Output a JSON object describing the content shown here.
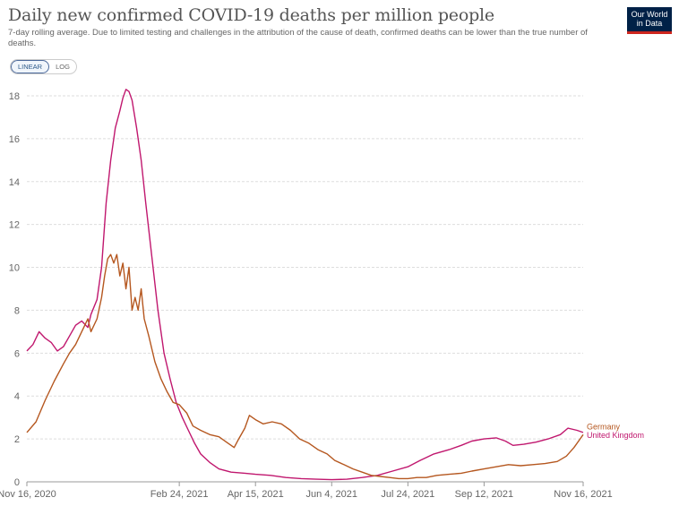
{
  "header": {
    "title": "Daily new confirmed COVID-19 deaths per million people",
    "subtitle": "7-day rolling average. Due to limited testing and challenges in the attribution of the cause of death, confirmed deaths can be lower than the true number of deaths.",
    "logo_line1": "Our World",
    "logo_line2": "in Data"
  },
  "controls": {
    "linear_label": "LINEAR",
    "log_label": "LOG",
    "active": "linear"
  },
  "colors": {
    "germany": "#b5571f",
    "uk": "#c0176e",
    "grid": "#dddddd",
    "logo_bg": "#002147",
    "logo_accent": "#ce261e"
  },
  "chart_data": {
    "type": "line",
    "title": "Daily new confirmed COVID-19 deaths per million people",
    "x_tick_labels": [
      "Nov 16, 2020",
      "Feb 24, 2021",
      "Apr 15, 2021",
      "Jun 4, 2021",
      "Jul 24, 2021",
      "Sep 12, 2021",
      "Nov 16, 2021"
    ],
    "x_tick_dates": [
      "2020-11-16",
      "2021-02-24",
      "2021-04-15",
      "2021-06-04",
      "2021-07-24",
      "2021-09-12",
      "2021-11-16"
    ],
    "x_range": [
      "2020-11-16",
      "2021-11-16"
    ],
    "y_ticks": [
      0,
      2,
      4,
      6,
      8,
      10,
      12,
      14,
      16,
      18
    ],
    "ylim": [
      0,
      18.5
    ],
    "grid": "horizontal dashed",
    "legend": "line-end labels on the right",
    "series": [
      {
        "name": "Germany",
        "color": "#b5571f",
        "points": [
          [
            "2020-11-16",
            2.3
          ],
          [
            "2020-11-22",
            2.8
          ],
          [
            "2020-11-28",
            3.8
          ],
          [
            "2020-12-04",
            4.7
          ],
          [
            "2020-12-10",
            5.5
          ],
          [
            "2020-12-14",
            6.0
          ],
          [
            "2020-12-18",
            6.4
          ],
          [
            "2020-12-22",
            7.0
          ],
          [
            "2020-12-26",
            7.6
          ],
          [
            "2020-12-28",
            7.0
          ],
          [
            "2021-01-01",
            7.6
          ],
          [
            "2021-01-04",
            8.6
          ],
          [
            "2021-01-06",
            9.6
          ],
          [
            "2021-01-08",
            10.4
          ],
          [
            "2021-01-10",
            10.6
          ],
          [
            "2021-01-12",
            10.2
          ],
          [
            "2021-01-14",
            10.6
          ],
          [
            "2021-01-16",
            9.6
          ],
          [
            "2021-01-18",
            10.2
          ],
          [
            "2021-01-20",
            9.0
          ],
          [
            "2021-01-22",
            10.0
          ],
          [
            "2021-01-24",
            8.0
          ],
          [
            "2021-01-26",
            8.6
          ],
          [
            "2021-01-28",
            8.0
          ],
          [
            "2021-01-30",
            9.0
          ],
          [
            "2021-02-01",
            7.6
          ],
          [
            "2021-02-04",
            6.8
          ],
          [
            "2021-02-08",
            5.6
          ],
          [
            "2021-02-12",
            4.8
          ],
          [
            "2021-02-16",
            4.2
          ],
          [
            "2021-02-20",
            3.7
          ],
          [
            "2021-02-24",
            3.6
          ],
          [
            "2021-03-01",
            3.2
          ],
          [
            "2021-03-05",
            2.6
          ],
          [
            "2021-03-10",
            2.4
          ],
          [
            "2021-03-16",
            2.2
          ],
          [
            "2021-03-22",
            2.1
          ],
          [
            "2021-03-28",
            1.8
          ],
          [
            "2021-04-01",
            1.6
          ],
          [
            "2021-04-04",
            2.0
          ],
          [
            "2021-04-08",
            2.5
          ],
          [
            "2021-04-11",
            3.1
          ],
          [
            "2021-04-15",
            2.9
          ],
          [
            "2021-04-20",
            2.7
          ],
          [
            "2021-04-26",
            2.8
          ],
          [
            "2021-05-02",
            2.7
          ],
          [
            "2021-05-08",
            2.4
          ],
          [
            "2021-05-14",
            2.0
          ],
          [
            "2021-05-20",
            1.8
          ],
          [
            "2021-05-26",
            1.5
          ],
          [
            "2021-06-01",
            1.3
          ],
          [
            "2021-06-06",
            1.0
          ],
          [
            "2021-06-12",
            0.8
          ],
          [
            "2021-06-18",
            0.6
          ],
          [
            "2021-06-24",
            0.45
          ],
          [
            "2021-06-30",
            0.3
          ],
          [
            "2021-07-06",
            0.25
          ],
          [
            "2021-07-12",
            0.2
          ],
          [
            "2021-07-18",
            0.15
          ],
          [
            "2021-07-24",
            0.15
          ],
          [
            "2021-07-30",
            0.2
          ],
          [
            "2021-08-05",
            0.2
          ],
          [
            "2021-08-12",
            0.3
          ],
          [
            "2021-08-20",
            0.35
          ],
          [
            "2021-08-28",
            0.4
          ],
          [
            "2021-09-04",
            0.5
          ],
          [
            "2021-09-12",
            0.6
          ],
          [
            "2021-09-20",
            0.7
          ],
          [
            "2021-09-28",
            0.8
          ],
          [
            "2021-10-06",
            0.75
          ],
          [
            "2021-10-14",
            0.8
          ],
          [
            "2021-10-22",
            0.85
          ],
          [
            "2021-10-30",
            0.95
          ],
          [
            "2021-11-05",
            1.2
          ],
          [
            "2021-11-10",
            1.6
          ],
          [
            "2021-11-14",
            2.0
          ],
          [
            "2021-11-16",
            2.2
          ]
        ]
      },
      {
        "name": "United Kingdom",
        "color": "#c0176e",
        "points": [
          [
            "2020-11-16",
            6.1
          ],
          [
            "2020-11-20",
            6.4
          ],
          [
            "2020-11-24",
            7.0
          ],
          [
            "2020-11-28",
            6.7
          ],
          [
            "2020-12-02",
            6.5
          ],
          [
            "2020-12-06",
            6.1
          ],
          [
            "2020-12-10",
            6.3
          ],
          [
            "2020-12-14",
            6.8
          ],
          [
            "2020-12-18",
            7.3
          ],
          [
            "2020-12-22",
            7.5
          ],
          [
            "2020-12-26",
            7.2
          ],
          [
            "2020-12-28",
            7.8
          ],
          [
            "2021-01-01",
            8.5
          ],
          [
            "2021-01-04",
            10.0
          ],
          [
            "2021-01-07",
            13.0
          ],
          [
            "2021-01-10",
            15.0
          ],
          [
            "2021-01-13",
            16.5
          ],
          [
            "2021-01-16",
            17.3
          ],
          [
            "2021-01-18",
            17.9
          ],
          [
            "2021-01-20",
            18.3
          ],
          [
            "2021-01-22",
            18.2
          ],
          [
            "2021-01-24",
            17.8
          ],
          [
            "2021-01-27",
            16.5
          ],
          [
            "2021-01-30",
            15.0
          ],
          [
            "2021-02-02",
            13.0
          ],
          [
            "2021-02-06",
            10.5
          ],
          [
            "2021-02-10",
            8.0
          ],
          [
            "2021-02-14",
            6.0
          ],
          [
            "2021-02-18",
            4.8
          ],
          [
            "2021-02-22",
            3.7
          ],
          [
            "2021-02-26",
            3.0
          ],
          [
            "2021-03-02",
            2.4
          ],
          [
            "2021-03-06",
            1.8
          ],
          [
            "2021-03-10",
            1.3
          ],
          [
            "2021-03-16",
            0.9
          ],
          [
            "2021-03-22",
            0.6
          ],
          [
            "2021-03-30",
            0.45
          ],
          [
            "2021-04-08",
            0.4
          ],
          [
            "2021-04-15",
            0.35
          ],
          [
            "2021-04-25",
            0.3
          ],
          [
            "2021-05-05",
            0.2
          ],
          [
            "2021-05-15",
            0.15
          ],
          [
            "2021-05-25",
            0.12
          ],
          [
            "2021-06-04",
            0.1
          ],
          [
            "2021-06-14",
            0.12
          ],
          [
            "2021-06-24",
            0.2
          ],
          [
            "2021-07-04",
            0.3
          ],
          [
            "2021-07-14",
            0.5
          ],
          [
            "2021-07-24",
            0.7
          ],
          [
            "2021-08-01",
            1.0
          ],
          [
            "2021-08-10",
            1.3
          ],
          [
            "2021-08-20",
            1.5
          ],
          [
            "2021-08-28",
            1.7
          ],
          [
            "2021-09-04",
            1.9
          ],
          [
            "2021-09-12",
            2.0
          ],
          [
            "2021-09-20",
            2.05
          ],
          [
            "2021-09-26",
            1.9
          ],
          [
            "2021-10-01",
            1.7
          ],
          [
            "2021-10-08",
            1.75
          ],
          [
            "2021-10-16",
            1.85
          ],
          [
            "2021-10-24",
            2.0
          ],
          [
            "2021-11-01",
            2.2
          ],
          [
            "2021-11-06",
            2.5
          ],
          [
            "2021-11-12",
            2.4
          ],
          [
            "2021-11-16",
            2.3
          ]
        ]
      }
    ]
  }
}
